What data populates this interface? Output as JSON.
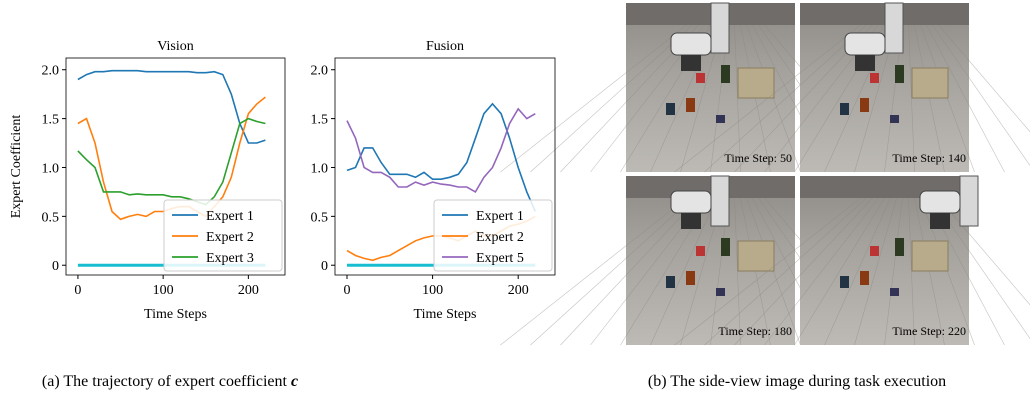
{
  "chart_data": [
    {
      "type": "line",
      "title": "Vision",
      "xlabel": "Time Steps",
      "ylabel": "Expert Coefficient",
      "x": [
        0,
        10,
        20,
        30,
        40,
        50,
        60,
        70,
        80,
        90,
        100,
        110,
        120,
        130,
        140,
        150,
        160,
        170,
        180,
        190,
        200,
        210,
        220
      ],
      "series": [
        {
          "name": "Expert 1",
          "color": "#1f77b4",
          "values": [
            1.9,
            1.95,
            1.98,
            1.98,
            1.99,
            1.99,
            1.99,
            1.99,
            1.98,
            1.98,
            1.98,
            1.98,
            1.98,
            1.98,
            1.97,
            1.97,
            1.98,
            1.95,
            1.75,
            1.45,
            1.25,
            1.25,
            1.28
          ]
        },
        {
          "name": "Expert 2",
          "color": "#ff7f0e",
          "values": [
            1.45,
            1.5,
            1.25,
            0.85,
            0.55,
            0.47,
            0.5,
            0.52,
            0.5,
            0.55,
            0.55,
            0.58,
            0.6,
            0.6,
            0.55,
            0.5,
            0.6,
            0.7,
            0.9,
            1.25,
            1.55,
            1.65,
            1.72
          ]
        },
        {
          "name": "Expert 3",
          "color": "#2ca02c",
          "values": [
            1.17,
            1.08,
            1.0,
            0.75,
            0.75,
            0.75,
            0.72,
            0.73,
            0.72,
            0.72,
            0.72,
            0.7,
            0.7,
            0.68,
            0.65,
            0.62,
            0.7,
            0.85,
            1.15,
            1.45,
            1.5,
            1.47,
            1.45
          ]
        },
        {
          "color": "#17becf",
          "values": [
            0,
            0,
            0,
            0,
            0,
            0,
            0,
            0,
            0,
            0,
            0,
            0,
            0,
            0,
            0,
            0,
            0,
            0,
            0,
            0,
            0,
            0,
            0
          ]
        }
      ],
      "xlim": [
        -14,
        243
      ],
      "xticks": [
        0,
        100,
        200
      ],
      "ylim": [
        -0.1,
        2.12
      ],
      "yticks": [
        0,
        0.5,
        {
          "value": 1,
          "label": "1.0"
        },
        1.5,
        {
          "value": 2,
          "label": "2.0"
        }
      ],
      "legend": "lower right"
    },
    {
      "type": "line",
      "title": "Fusion",
      "xlabel": "Time Steps",
      "x": [
        0,
        10,
        20,
        30,
        40,
        50,
        60,
        70,
        80,
        90,
        100,
        110,
        120,
        130,
        140,
        150,
        160,
        170,
        180,
        190,
        200,
        210,
        220
      ],
      "series": [
        {
          "name": "Expert 1",
          "color": "#1f77b4",
          "values": [
            0.97,
            1.0,
            1.2,
            1.2,
            1.05,
            0.93,
            0.93,
            0.93,
            0.9,
            0.95,
            0.88,
            0.88,
            0.9,
            0.93,
            1.05,
            1.3,
            1.55,
            1.65,
            1.55,
            1.3,
            1.0,
            0.75,
            0.55
          ]
        },
        {
          "name": "Expert 2",
          "color": "#ff7f0e",
          "values": [
            0.15,
            0.1,
            0.07,
            0.05,
            0.08,
            0.1,
            0.15,
            0.2,
            0.25,
            0.28,
            0.3,
            0.3,
            0.28,
            0.25,
            0.3,
            0.35,
            0.3,
            0.3,
            0.35,
            0.4,
            0.42,
            0.45,
            0.5
          ]
        },
        {
          "name": "Expert 5",
          "color": "#9467bd",
          "values": [
            1.48,
            1.3,
            1.0,
            0.95,
            0.95,
            0.9,
            0.8,
            0.8,
            0.85,
            0.82,
            0.85,
            0.83,
            0.82,
            0.8,
            0.8,
            0.75,
            0.9,
            1.0,
            1.2,
            1.45,
            1.6,
            1.5,
            1.55
          ]
        },
        {
          "color": "#17becf",
          "values": [
            0,
            0,
            0,
            0,
            0,
            0,
            0,
            0,
            0,
            0,
            0,
            0,
            0,
            0,
            0,
            0,
            0,
            0,
            0,
            0,
            0,
            0,
            0
          ]
        }
      ],
      "xlim": [
        -14,
        243
      ],
      "xticks": [
        0,
        100,
        200
      ],
      "ylim": [
        -0.1,
        2.12
      ],
      "yticks": [
        0,
        0.5,
        {
          "value": 1,
          "label": "1.0"
        },
        1.5,
        {
          "value": 2,
          "label": "2.0"
        }
      ],
      "legend": "lower right"
    }
  ],
  "images": [
    {
      "label": "Time Step: 50"
    },
    {
      "label": "Time Step: 140"
    },
    {
      "label": "Time Step: 180"
    },
    {
      "label": "Time Step: 220"
    }
  ],
  "captions": {
    "a": {
      "text": "(a) The trajectory of expert coefficient",
      "symbol": "c"
    },
    "b": "(b) The side-view image during task execution"
  }
}
